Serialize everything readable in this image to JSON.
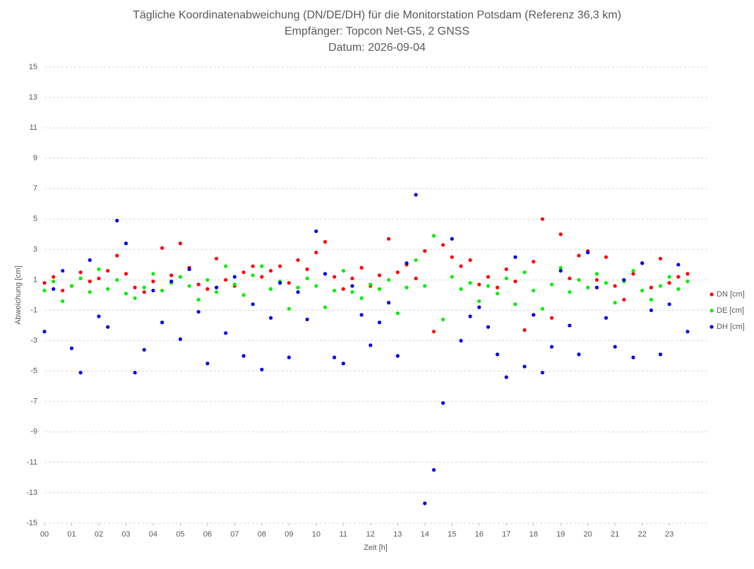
{
  "chart_data": {
    "type": "scatter",
    "title": "Tägliche Koordinatenabweichung (DN/DE/DH) für die Monitorstation Potsdam (Referenz 36,3 km)",
    "subtitle": "Empfänger: Topcon Net-G5, 2 GNSS",
    "date": "Datum: 2026-09-04",
    "x_label": "Zeit [h]",
    "y_label": "Abweichung [cm]",
    "x": [
      0,
      0.33,
      0.67,
      1,
      1.33,
      1.67,
      2,
      2.33,
      2.67,
      3,
      3.33,
      3.67,
      4,
      4.33,
      4.67,
      5,
      5.33,
      5.67,
      6,
      6.33,
      6.67,
      7,
      7.33,
      7.67,
      8,
      8.33,
      8.67,
      9,
      9.33,
      9.67,
      10,
      10.33,
      10.67,
      11,
      11.33,
      11.67,
      12,
      12.33,
      12.67,
      13,
      13.33,
      13.67,
      14,
      14.33,
      14.67,
      15,
      15.33,
      15.67,
      16,
      16.33,
      16.67,
      17,
      17.33,
      17.67,
      18,
      18.33,
      18.67,
      19,
      19.33,
      19.67,
      20,
      20.33,
      20.67,
      21,
      21.33,
      21.67,
      22,
      22.33,
      22.67,
      23,
      23.33,
      23.67
    ],
    "series": [
      {
        "name": "DN [cm]",
        "color": "#ff0000",
        "values": [
          0.8,
          1.2,
          0.3,
          0.6,
          1.5,
          0.9,
          1.1,
          1.6,
          2.6,
          1.4,
          0.5,
          0.2,
          0.9,
          3.1,
          1.3,
          3.4,
          1.8,
          0.7,
          0.4,
          2.4,
          1.0,
          0.6,
          1.5,
          1.9,
          1.2,
          1.6,
          1.9,
          0.8,
          2.3,
          1.7,
          2.8,
          3.5,
          1.2,
          0.4,
          1.1,
          1.8,
          0.6,
          1.3,
          3.7,
          1.5,
          2.0,
          1.1,
          2.9,
          -2.4,
          3.3,
          2.5,
          1.9,
          2.3,
          0.7,
          1.2,
          0.5,
          1.7,
          0.9,
          -2.3,
          2.2,
          5.0,
          -1.5,
          4.0,
          1.1,
          2.6,
          2.9,
          1.0,
          2.5,
          0.6,
          -0.3,
          1.4,
          2.1,
          0.5,
          2.4,
          0.8,
          1.2,
          1.4
        ]
      },
      {
        "name": "DE [cm]",
        "color": "#00ee00",
        "values": [
          0.3,
          0.9,
          -0.4,
          0.6,
          1.1,
          0.2,
          1.7,
          0.4,
          1.0,
          0.1,
          -0.2,
          0.5,
          1.4,
          0.3,
          0.8,
          1.2,
          0.6,
          -0.3,
          1.0,
          0.2,
          1.9,
          0.7,
          0.0,
          1.3,
          1.9,
          0.4,
          0.9,
          -0.9,
          0.5,
          1.1,
          0.6,
          -0.8,
          0.3,
          1.6,
          0.2,
          -0.2,
          0.7,
          0.4,
          1.0,
          -1.2,
          0.5,
          2.3,
          0.6,
          3.9,
          -1.6,
          1.2,
          0.4,
          0.8,
          -0.4,
          0.6,
          0.1,
          1.1,
          -0.6,
          1.5,
          0.3,
          -0.9,
          0.7,
          1.8,
          0.2,
          1.0,
          0.5,
          1.4,
          0.8,
          -0.5,
          0.9,
          1.6,
          0.3,
          -0.3,
          0.6,
          1.2,
          0.4,
          0.9
        ]
      },
      {
        "name": "DH [cm]",
        "color": "#0000e6",
        "values": [
          -2.4,
          0.4,
          1.6,
          -3.5,
          -5.1,
          2.3,
          -1.4,
          -2.1,
          4.9,
          3.4,
          -5.1,
          -3.6,
          0.3,
          -1.8,
          0.9,
          -2.9,
          1.7,
          -1.1,
          -4.5,
          0.5,
          -2.5,
          1.2,
          -4.0,
          -0.6,
          -4.9,
          -1.5,
          0.8,
          -4.1,
          0.2,
          -1.6,
          4.2,
          1.4,
          -4.1,
          -4.5,
          0.6,
          -1.3,
          -3.3,
          -1.8,
          -0.5,
          -4.0,
          2.1,
          6.6,
          -13.7,
          -11.5,
          -7.1,
          3.7,
          -3.0,
          -1.4,
          -0.8,
          -2.1,
          -3.9,
          -5.4,
          2.5,
          -4.7,
          -1.3,
          -5.1,
          -3.4,
          1.6,
          -2.0,
          -3.9,
          2.8,
          0.5,
          -1.5,
          -3.4,
          1.0,
          -4.1,
          2.1,
          -1.0,
          -3.9,
          -0.6,
          2.0,
          -2.4
        ]
      }
    ],
    "xlim": [
      0,
      24.4
    ],
    "xticks": [
      {
        "value": 0,
        "label": "00"
      },
      {
        "value": 1,
        "label": "01"
      },
      {
        "value": 2,
        "label": "02"
      },
      {
        "value": 3,
        "label": "03"
      },
      {
        "value": 4,
        "label": "04"
      },
      {
        "value": 5,
        "label": "05"
      },
      {
        "value": 6,
        "label": "06"
      },
      {
        "value": 7,
        "label": "07"
      },
      {
        "value": 8,
        "label": "08"
      },
      {
        "value": 9,
        "label": "09"
      },
      10,
      11,
      12,
      13,
      14,
      15,
      16,
      17,
      18,
      19,
      20,
      21,
      22,
      23
    ],
    "ylim": [
      -15,
      15
    ],
    "yticks": [
      -15,
      -13,
      -11,
      -9,
      -7,
      -5,
      -3,
      -1,
      1,
      3,
      5,
      7,
      9,
      11,
      13,
      15
    ],
    "grid": true,
    "legend": "right"
  }
}
